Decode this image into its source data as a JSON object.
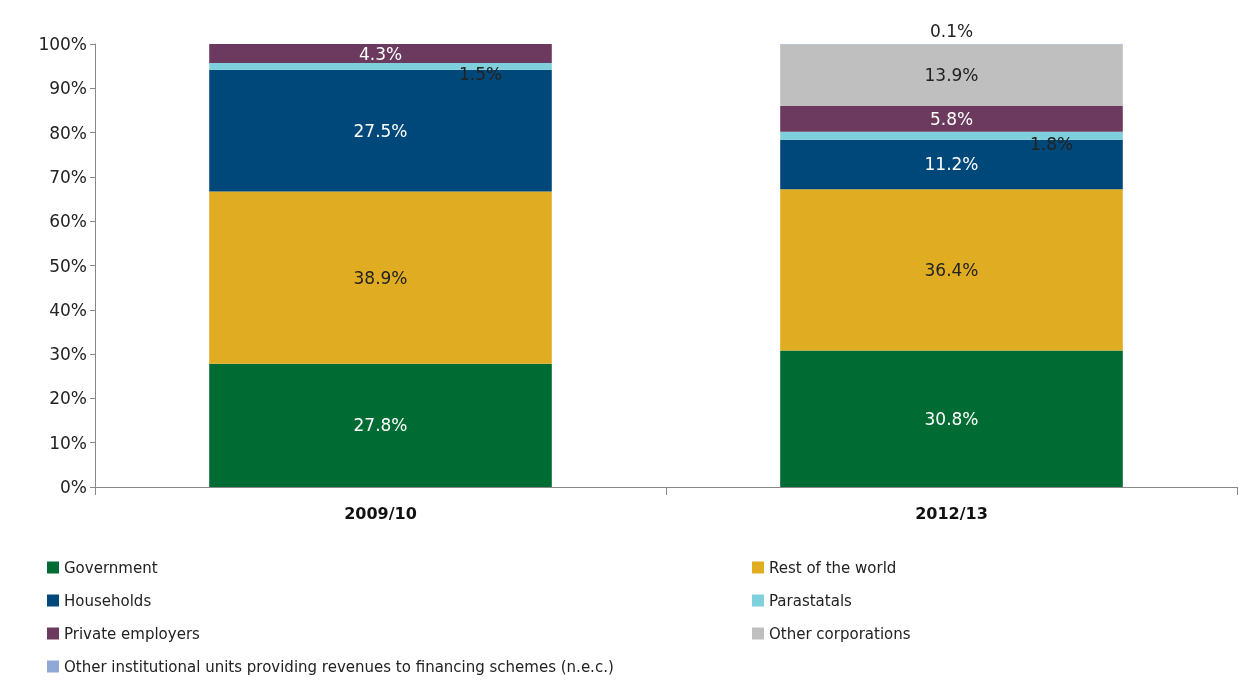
{
  "chart_data": {
    "type": "bar",
    "stacked": true,
    "categories": [
      "2009/10",
      "2012/13"
    ],
    "series": [
      {
        "name": "Government",
        "color": "#006b33",
        "values": [
          27.8,
          30.8
        ],
        "value_labels": [
          "27.8%",
          "30.8%"
        ]
      },
      {
        "name": "Rest of the world",
        "color": "#e0ac22",
        "values": [
          38.9,
          36.4
        ],
        "value_labels": [
          "38.9%",
          "36.4%"
        ]
      },
      {
        "name": "Households",
        "color": "#00487a",
        "values": [
          27.5,
          11.2
        ],
        "value_labels": [
          "27.5%",
          "11.2%"
        ]
      },
      {
        "name": "Parastatals",
        "color": "#7dd0dc",
        "values": [
          1.5,
          1.8
        ],
        "value_labels": [
          "1.5%",
          "1.8%"
        ]
      },
      {
        "name": "Private employers",
        "color": "#6b3a5e",
        "values": [
          4.3,
          5.8
        ],
        "value_labels": [
          "4.3%",
          "5.8%"
        ]
      },
      {
        "name": "Other corporations",
        "color": "#bfbfbf",
        "values": [
          0,
          13.9
        ],
        "value_labels": [
          null,
          "13.9%"
        ]
      },
      {
        "name": "Other institutional units providing revenues to financing schemes (n.e.c.)",
        "color": "#8fa9d6",
        "values": [
          0,
          0.1
        ],
        "value_labels": [
          null,
          "0.1%"
        ]
      }
    ],
    "ylim": [
      0,
      100
    ],
    "yticks": [
      {
        "value": 0,
        "label": "0%"
      },
      {
        "value": 10,
        "label": "10%"
      },
      {
        "value": 20,
        "label": "20%"
      },
      {
        "value": 30,
        "label": "30%"
      },
      {
        "value": 40,
        "label": "40%"
      },
      {
        "value": 50,
        "label": "50%"
      },
      {
        "value": 60,
        "label": "60%"
      },
      {
        "value": 70,
        "label": "70%"
      },
      {
        "value": 80,
        "label": "80%"
      },
      {
        "value": 90,
        "label": "90%"
      },
      {
        "value": 100,
        "label": "100%"
      }
    ],
    "grid": false,
    "legend": "bottom"
  }
}
